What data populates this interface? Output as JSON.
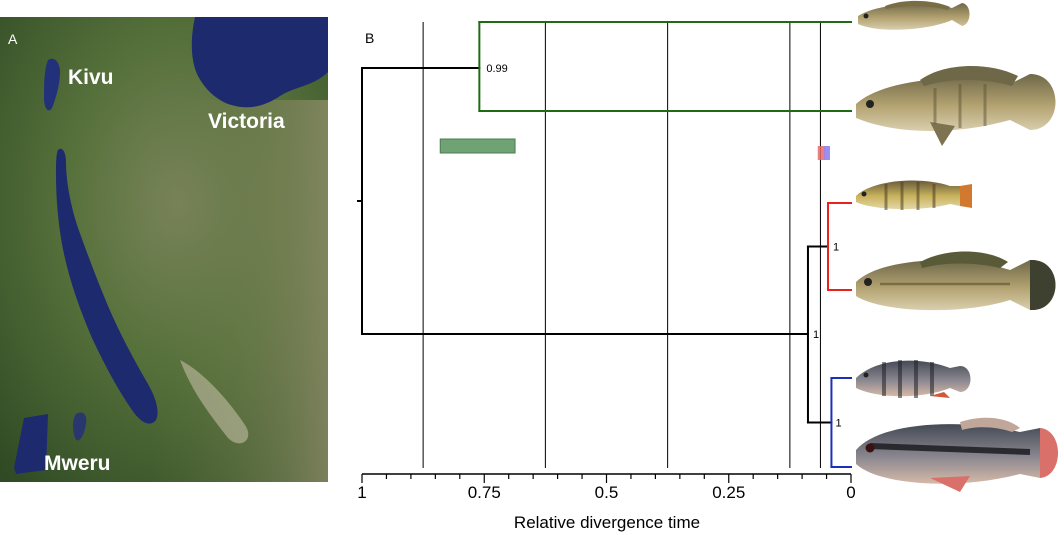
{
  "panel_a": {
    "label": "A",
    "lakes": [
      {
        "name": "Kivu"
      },
      {
        "name": "Victoria"
      },
      {
        "name": "Mweru"
      }
    ]
  },
  "panel_b": {
    "label": "B"
  },
  "chart_data": {
    "type": "phylogenetic-tree",
    "xlabel": "Relative divergence time",
    "x_reversed": true,
    "xlim": [
      1,
      0
    ],
    "x_ticks": [
      1,
      0.75,
      0.5,
      0.25,
      0
    ],
    "x_tick_labels": [
      "1",
      "0.75",
      "0.5",
      "0.25",
      "0"
    ],
    "gridlines": [
      0.875,
      0.625,
      0.375,
      0.125,
      0.0625
    ],
    "nodes": [
      {
        "id": "root",
        "time": 1.0
      },
      {
        "id": "green",
        "time": 0.76,
        "support": "0.99",
        "color": "#1f6b12"
      },
      {
        "id": "inner",
        "time": 0.088,
        "support": "1"
      },
      {
        "id": "red",
        "time": 0.047,
        "support": "1",
        "color": "#e8231c"
      },
      {
        "id": "blue",
        "time": 0.04,
        "support": "1",
        "color": "#1c2fb8"
      }
    ],
    "confidence_bars": [
      {
        "clade": "green",
        "range": [
          0.84,
          0.687
        ],
        "color": "#6fa374"
      },
      {
        "clade": "red",
        "range": [
          0.068,
          0.054
        ],
        "color": "#e86a6a"
      },
      {
        "clade": "blue",
        "range": [
          0.055,
          0.043
        ],
        "color": "#8a7df0"
      }
    ],
    "tips": [
      {
        "clade": "green",
        "time": 0.0
      },
      {
        "clade": "green",
        "time": 0.0
      },
      {
        "clade": "red",
        "time": 0.0
      },
      {
        "clade": "red",
        "time": 0.0
      },
      {
        "clade": "blue",
        "time": 0.0
      },
      {
        "clade": "blue",
        "time": 0.0
      }
    ]
  },
  "colors": {
    "water": "#1d2a6e",
    "land": "#4c6a33",
    "fish_body": "#9c8d5a"
  }
}
